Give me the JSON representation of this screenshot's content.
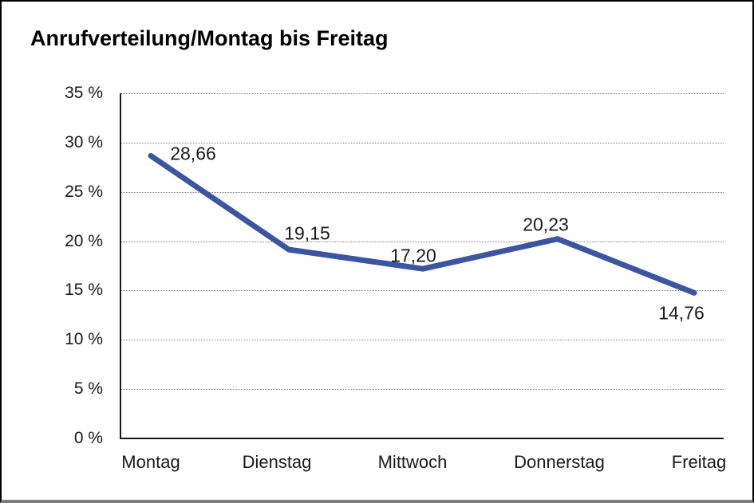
{
  "chart_data": {
    "type": "line",
    "title": "Anrufverteilung/Montag bis Freitag",
    "categories": [
      "Montag",
      "Dienstag",
      "Mittwoch",
      "Donnerstag",
      "Freitag"
    ],
    "series": [
      {
        "name": "Anrufverteilung",
        "values": [
          28.66,
          19.15,
          17.2,
          20.23,
          14.76
        ],
        "value_labels": [
          "28,66",
          "19,15",
          "17,20",
          "20,23",
          "14,76"
        ]
      }
    ],
    "xlabel": "",
    "ylabel": "",
    "y_tick_labels": [
      "0 %",
      "5 %",
      "10 %",
      "15 %",
      "20 %",
      "25 %",
      "30 %",
      "35 %"
    ],
    "ylim": [
      0,
      35
    ],
    "y_tick_step": 5,
    "grid": "horizontal-dotted",
    "legend": "none",
    "line_color": "#3B55A0",
    "axis_color": "#1a1a1a",
    "gridline_color": "#7f7f7f",
    "background_color": "#ffffff"
  }
}
